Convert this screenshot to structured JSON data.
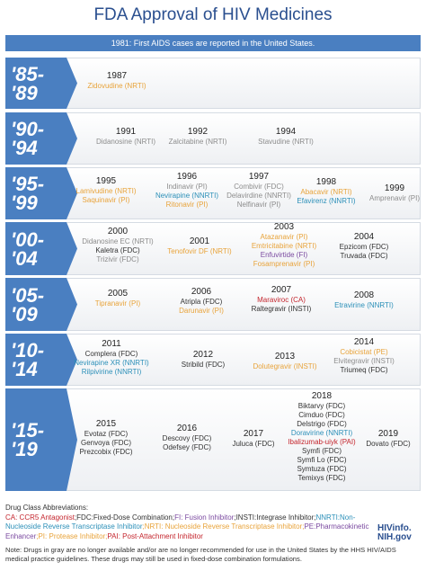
{
  "title": "FDA Approval of HIV Medicines",
  "banner": "1981: First AIDS cases are reported in the United States.",
  "periods": [
    {
      "label": [
        "'85-",
        "'89"
      ],
      "entries": [
        {
          "year": "1987",
          "drugs": [
            {
              "name": "Zidovudine (NRTI)",
              "color": "#e8a33a"
            }
          ]
        }
      ]
    },
    {
      "label": [
        "'90-",
        "'94"
      ],
      "entries": [
        {
          "year": "1991",
          "drugs": [
            {
              "name": "Didanosine (NRTI)",
              "color": "#8c8c8c"
            }
          ]
        },
        {
          "year": "1992",
          "drugs": [
            {
              "name": "Zalcitabine (NRTI)",
              "color": "#8c8c8c"
            }
          ]
        },
        {
          "year": "1994",
          "drugs": [
            {
              "name": "Stavudine (NRTI)",
              "color": "#8c8c8c"
            }
          ]
        }
      ]
    },
    {
      "label": [
        "'95-",
        "'99"
      ],
      "entries": [
        {
          "year": "1995",
          "drugs": [
            {
              "name": "Lamivudine (NRTI)",
              "color": "#e8a33a"
            },
            {
              "name": "Saquinavir (PI)",
              "color": "#e8a33a"
            }
          ]
        },
        {
          "year": "1996",
          "drugs": [
            {
              "name": "Indinavir (PI)",
              "color": "#8c8c8c"
            },
            {
              "name": "Nevirapine (NNRTI)",
              "color": "#2b8fb8"
            },
            {
              "name": "Ritonavir (PI)",
              "color": "#e8a33a"
            }
          ]
        },
        {
          "year": "1997",
          "drugs": [
            {
              "name": "Combivir (FDC)",
              "color": "#8c8c8c"
            },
            {
              "name": "Delavirdine (NNRTI)",
              "color": "#8c8c8c"
            },
            {
              "name": "Nelfinavir (PI)",
              "color": "#8c8c8c"
            }
          ]
        },
        {
          "year": "1998",
          "drugs": [
            {
              "name": "Abacavir (NRTI)",
              "color": "#e8a33a"
            },
            {
              "name": "Efavirenz (NNRTI)",
              "color": "#2b8fb8"
            }
          ]
        },
        {
          "year": "1999",
          "drugs": [
            {
              "name": "Amprenavir (PI)",
              "color": "#8c8c8c"
            }
          ]
        }
      ]
    },
    {
      "label": [
        "'00-",
        "'04"
      ],
      "entries": [
        {
          "year": "2000",
          "drugs": [
            {
              "name": "Didanosine EC (NRTI)",
              "color": "#8c8c8c"
            },
            {
              "name": "Kaletra (FDC)",
              "color": "#333333"
            },
            {
              "name": "Trizivir (FDC)",
              "color": "#8c8c8c"
            }
          ]
        },
        {
          "year": "2001",
          "drugs": [
            {
              "name": "Tenofovir DF (NRTI)",
              "color": "#e8a33a"
            }
          ]
        },
        {
          "year": "2003",
          "drugs": [
            {
              "name": "Atazanavir (PI)",
              "color": "#e8a33a"
            },
            {
              "name": "Emtricitabine (NRTI)",
              "color": "#e8a33a"
            },
            {
              "name": "Enfuvirtide (FI)",
              "color": "#7b4aa0"
            },
            {
              "name": "Fosamprenavir (PI)",
              "color": "#e8a33a"
            }
          ]
        },
        {
          "year": "2004",
          "drugs": [
            {
              "name": "Epzicom (FDC)",
              "color": "#333333"
            },
            {
              "name": "Truvada (FDC)",
              "color": "#333333"
            }
          ]
        }
      ]
    },
    {
      "label": [
        "'05-",
        "'09"
      ],
      "entries": [
        {
          "year": "2005",
          "drugs": [
            {
              "name": "Tipranavir (PI)",
              "color": "#e8a33a"
            }
          ]
        },
        {
          "year": "2006",
          "drugs": [
            {
              "name": "Atripla (FDC)",
              "color": "#333333"
            },
            {
              "name": "Darunavir (PI)",
              "color": "#e8a33a"
            }
          ]
        },
        {
          "year": "2007",
          "drugs": [
            {
              "name": "Maraviroc (CA)",
              "color": "#c4262e"
            },
            {
              "name": "Raltegravir (INSTI)",
              "color": "#333333"
            }
          ]
        },
        {
          "year": "2008",
          "drugs": [
            {
              "name": "Etravirine (NNRTI)",
              "color": "#2b8fb8"
            }
          ]
        }
      ]
    },
    {
      "label": [
        "'10-",
        "'14"
      ],
      "entries": [
        {
          "year": "2011",
          "drugs": [
            {
              "name": "Complera (FDC)",
              "color": "#333333"
            },
            {
              "name": "Nevirapine XR (NNRTI)",
              "color": "#2b8fb8"
            },
            {
              "name": "Rilpivirine (NNRTI)",
              "color": "#2b8fb8"
            }
          ]
        },
        {
          "year": "2012",
          "drugs": [
            {
              "name": "Stribild (FDC)",
              "color": "#333333"
            }
          ]
        },
        {
          "year": "2013",
          "drugs": [
            {
              "name": "Dolutegravir (INSTI)",
              "color": "#e8a33a"
            }
          ]
        },
        {
          "year": "2014",
          "drugs": [
            {
              "name": "Cobicistat (PE)",
              "color": "#e8a33a"
            },
            {
              "name": "Elvitegravir (INSTI)",
              "color": "#8c8c8c"
            },
            {
              "name": "Triumeq (FDC)",
              "color": "#333333"
            }
          ]
        }
      ]
    },
    {
      "label": [
        "'15-",
        "'19"
      ],
      "entries": [
        {
          "year": "2015",
          "drugs": [
            {
              "name": "Evotaz (FDC)",
              "color": "#333333"
            },
            {
              "name": "Genvoya (FDC)",
              "color": "#333333"
            },
            {
              "name": "Prezcobix (FDC)",
              "color": "#333333"
            }
          ]
        },
        {
          "year": "2016",
          "drugs": [
            {
              "name": "Descovy (FDC)",
              "color": "#333333"
            },
            {
              "name": "Odefsey (FDC)",
              "color": "#333333"
            }
          ]
        },
        {
          "year": "2017",
          "drugs": [
            {
              "name": "Juluca (FDC)",
              "color": "#333333"
            }
          ]
        },
        {
          "year": "2018",
          "drugs": [
            {
              "name": "Biktarvy (FDC)",
              "color": "#333333"
            },
            {
              "name": "Cimduo (FDC)",
              "color": "#333333"
            },
            {
              "name": "Delstrigo (FDC)",
              "color": "#333333"
            },
            {
              "name": "Doravirine (NNRTI)",
              "color": "#2b8fb8"
            },
            {
              "name": "Ibalizumab-uiyk (PAI)",
              "color": "#c4262e"
            },
            {
              "name": "Symfi (FDC)",
              "color": "#333333"
            },
            {
              "name": "Symfi Lo (FDC)",
              "color": "#333333"
            },
            {
              "name": "Symtuza (FDC)",
              "color": "#333333"
            },
            {
              "name": "Temixys (FDC)",
              "color": "#333333"
            }
          ]
        },
        {
          "year": "2019",
          "drugs": [
            {
              "name": "Dovato (FDC)",
              "color": "#333333"
            }
          ]
        }
      ]
    }
  ],
  "legend": {
    "heading": "Drug Class Abbreviations:",
    "segments": [
      {
        "text": "CA: CCR5 Antagonist",
        "color": "#c4262e"
      },
      {
        "text": ";FDC:Fixed-Dose Combination;",
        "color": "#333333"
      },
      {
        "text": "FI: Fusion Inhibitor",
        "color": "#7b4aa0"
      },
      {
        "text": ";INSTI:Integrase Inhibitor;",
        "color": "#333333"
      },
      {
        "text": "NNRTI:Non-Nucleoside Reverse Transcriptase Inhibitor",
        "color": "#2b8fb8"
      },
      {
        "text": ";NRTI: Nucleoside Reverse Transcriptase Inhibitor;",
        "color": "#e8a33a"
      },
      {
        "text": "PE:Pharmacokinetic Enhancer",
        "color": "#7b4aa0"
      },
      {
        "text": ";PI: Protease Inhibitor;",
        "color": "#e8a33a"
      },
      {
        "text": "PAI: Post-Attachment Inhibitor",
        "color": "#c4262e"
      }
    ]
  },
  "logo": [
    "HIVinfo.",
    "NIH.gov"
  ],
  "note": "Note: Drugs in gray are no longer available and/or are no longer recommended for use in the United States by the HHS HIV/AIDS medical practice guidelines. These drugs may still be used in fixed-dose combination formulations."
}
